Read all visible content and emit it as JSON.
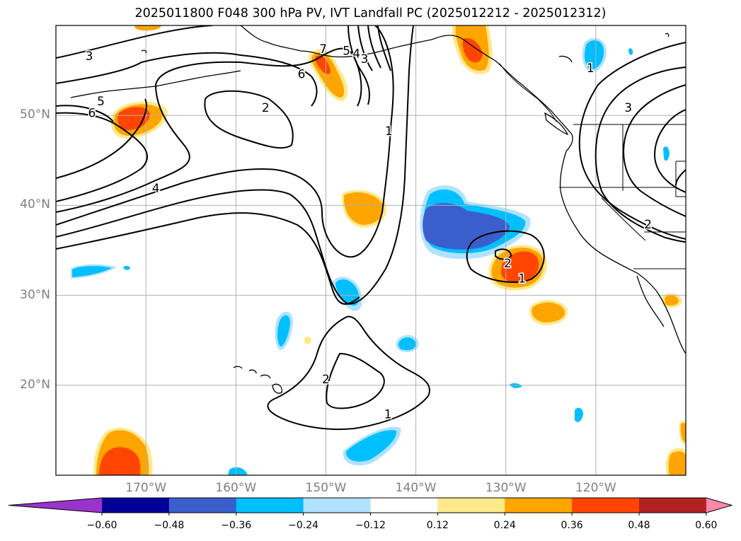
{
  "title": "2025011800 F048 300 hPa PV, IVT Landfall PC (2025012212 - 2025012312)",
  "map": {
    "lon_range": [
      -180,
      -110
    ],
    "lat_range": [
      10,
      60
    ],
    "lat_labels": [
      {
        "lat": 50,
        "label": "50°N"
      },
      {
        "lat": 40,
        "label": "40°N"
      },
      {
        "lat": 30,
        "label": "30°N"
      },
      {
        "lat": 20,
        "label": "20°N"
      }
    ],
    "lon_labels": [
      {
        "lon": -170,
        "label": "170°W"
      },
      {
        "lon": -160,
        "label": "160°W"
      },
      {
        "lon": -150,
        "label": "150°W"
      },
      {
        "lon": -140,
        "label": "140°W"
      },
      {
        "lon": -130,
        "label": "130°W"
      },
      {
        "lon": -120,
        "label": "120°W"
      }
    ],
    "contour_labels": [
      {
        "text": "3",
        "lon": -176.3,
        "lat": 56.6
      },
      {
        "text": "5",
        "lon": -175.0,
        "lat": 51.6
      },
      {
        "text": "6",
        "lon": -176.0,
        "lat": 50.3
      },
      {
        "text": "4",
        "lon": -168.9,
        "lat": 41.9
      },
      {
        "text": "2",
        "lon": -156.7,
        "lat": 50.9
      },
      {
        "text": "6",
        "lon": -152.7,
        "lat": 54.6
      },
      {
        "text": "7",
        "lon": -150.3,
        "lat": 57.4
      },
      {
        "text": "5",
        "lon": -147.7,
        "lat": 57.2
      },
      {
        "text": "4",
        "lon": -146.6,
        "lat": 56.9
      },
      {
        "text": "3",
        "lon": -145.7,
        "lat": 56.3
      },
      {
        "text": "1",
        "lon": -143.0,
        "lat": 48.3
      },
      {
        "text": "2",
        "lon": -129.8,
        "lat": 33.6
      },
      {
        "text": "1",
        "lon": -128.2,
        "lat": 31.9
      },
      {
        "text": "2",
        "lon": -150.0,
        "lat": 20.7
      },
      {
        "text": "1",
        "lon": -143.1,
        "lat": 16.8
      },
      {
        "text": "1",
        "lon": -120.6,
        "lat": 55.3
      },
      {
        "text": "3",
        "lon": -116.4,
        "lat": 50.9
      },
      {
        "text": "2",
        "lon": -114.2,
        "lat": 37.9
      }
    ]
  },
  "colorbar": {
    "ticks": [
      "−0.60",
      "−0.48",
      "−0.36",
      "−0.24",
      "−0.12",
      "0.12",
      "0.24",
      "0.36",
      "0.48",
      "0.60"
    ],
    "colors": [
      "#9933cc",
      "#000099",
      "#3a5fcd",
      "#00bfff",
      "#b0e2ff",
      "#ffffff",
      "#fee98a",
      "#ffa500",
      "#ff4500",
      "#b22222",
      "#ff88aa"
    ]
  },
  "fill_colors": {
    "light_blue": "#b0e2ff",
    "blue": "#00bfff",
    "royal_blue": "#3a5fcd",
    "yellow": "#fee98a",
    "orange": "#ffa500",
    "red_orange": "#ff4500"
  }
}
